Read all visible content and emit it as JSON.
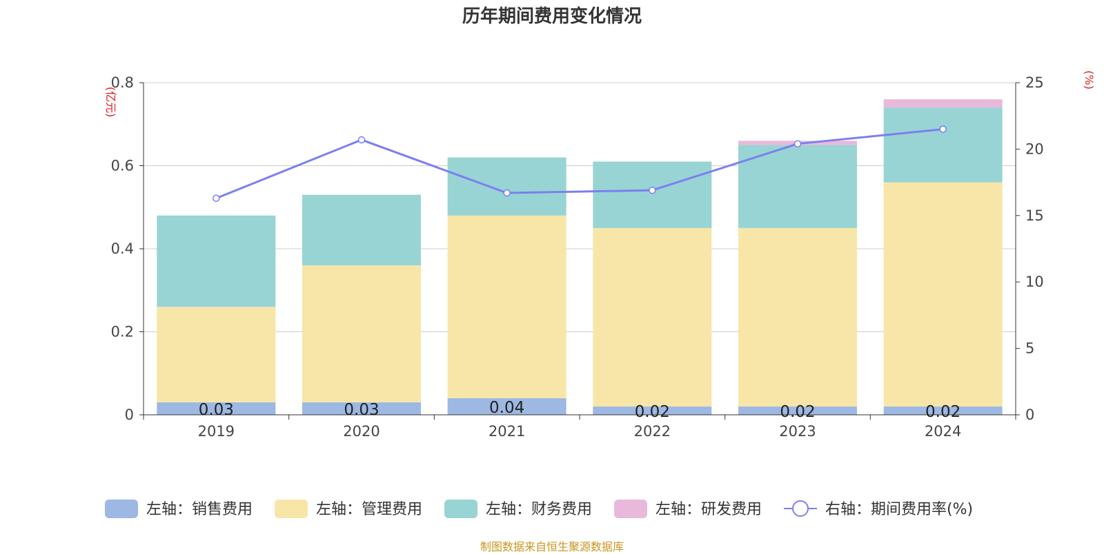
{
  "title": "历年期间费用变化情况",
  "source": "制图数据来自恒生聚源数据库",
  "chart_data": {
    "type": "bar",
    "stacked": true,
    "categories": [
      "2019",
      "2020",
      "2021",
      "2022",
      "2023",
      "2024"
    ],
    "y_left": {
      "unit": "(亿元)",
      "ylim": [
        0,
        0.8
      ],
      "ticks": [
        "0",
        "0.2",
        "0.4",
        "0.6",
        "0.8"
      ]
    },
    "y_right": {
      "unit": "(%)",
      "ylim": [
        0,
        25
      ],
      "ticks": [
        "0",
        "5",
        "10",
        "15",
        "20",
        "25"
      ]
    },
    "series": [
      {
        "name": "左轴：销售费用",
        "axis": "left",
        "type": "bar",
        "color": "#9db8e2",
        "values": [
          0.03,
          0.03,
          0.04,
          0.02,
          0.02,
          0.02
        ],
        "labels": [
          "0.03",
          "0.03",
          "0.04",
          "0.02",
          "0.02",
          "0.02"
        ]
      },
      {
        "name": "左轴：管理费用",
        "axis": "left",
        "type": "bar",
        "color": "#f7e6a8",
        "values": [
          0.23,
          0.33,
          0.44,
          0.43,
          0.43,
          0.54
        ]
      },
      {
        "name": "左轴：财务费用",
        "axis": "left",
        "type": "bar",
        "color": "#98d4d4",
        "values": [
          0.22,
          0.17,
          0.14,
          0.16,
          0.2,
          0.18
        ]
      },
      {
        "name": "左轴：研发费用",
        "axis": "left",
        "type": "bar",
        "color": "#e8b9da",
        "values": [
          0.0,
          0.0,
          0.0,
          0.0,
          0.01,
          0.02
        ]
      },
      {
        "name": "右轴：期间费用率(%)",
        "axis": "right",
        "type": "line",
        "color": "#7b7ff0",
        "values": [
          16.3,
          20.7,
          16.7,
          16.9,
          20.4,
          21.5
        ]
      }
    ],
    "legend": "bottom",
    "grid": true
  }
}
